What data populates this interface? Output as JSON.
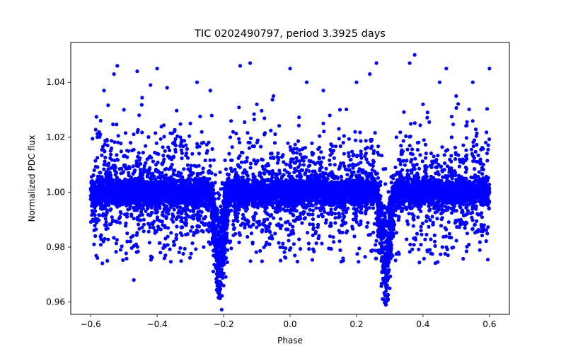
{
  "chart_data": {
    "type": "scatter",
    "title": "TIC 0202490797, period 3.3925 days",
    "xlabel": "Phase",
    "ylabel": "Normalized PDC flux",
    "xlim": [
      -0.66,
      0.66
    ],
    "ylim": [
      0.9555,
      1.0545
    ],
    "xticks": [
      -0.6,
      -0.4,
      -0.2,
      0.0,
      0.2,
      0.4,
      0.6
    ],
    "xtick_labels": [
      "−0.6",
      "−0.4",
      "−0.2",
      "0.0",
      "0.2",
      "0.4",
      "0.6"
    ],
    "yticks": [
      0.96,
      0.98,
      1.0,
      1.02,
      1.04
    ],
    "ytick_labels": [
      "0.96",
      "0.98",
      "1.00",
      "1.02",
      "1.04"
    ],
    "grid": false,
    "marker_color": "#0000ff",
    "series": [
      {
        "phase_range": [
          -0.6,
          0.6
        ],
        "baseline_flux": 1.0,
        "dense_band_halfwidth": 0.009,
        "scatter_range": [
          0.974,
          1.046
        ],
        "dips": [
          {
            "center_phase": -0.212,
            "depth": 0.035,
            "min_flux": 0.962
          },
          {
            "center_phase": 0.288,
            "depth": 0.035,
            "min_flux": 0.959
          }
        ],
        "points": [
          [
            -0.6,
            1.001
          ],
          [
            -0.59,
            0.981
          ],
          [
            -0.58,
            1.02
          ],
          [
            -0.57,
            1.026
          ],
          [
            -0.56,
            1.037
          ],
          [
            -0.55,
            0.975
          ],
          [
            -0.54,
            1.015
          ],
          [
            -0.53,
            1.043
          ],
          [
            -0.52,
            1.046
          ],
          [
            -0.51,
            0.979
          ],
          [
            -0.5,
            1.03
          ],
          [
            -0.49,
            0.985
          ],
          [
            -0.48,
            1.018
          ],
          [
            -0.47,
            0.968
          ],
          [
            -0.46,
            1.044
          ],
          [
            -0.45,
            1.006
          ],
          [
            -0.44,
            0.99
          ],
          [
            -0.42,
            1.039
          ],
          [
            -0.4,
            1.045
          ],
          [
            -0.39,
            0.978
          ],
          [
            -0.37,
            1.038
          ],
          [
            -0.35,
            0.982
          ],
          [
            -0.33,
            1.02
          ],
          [
            -0.3,
            1.025
          ],
          [
            -0.28,
            1.04
          ],
          [
            -0.26,
            0.98
          ],
          [
            -0.24,
            1.037
          ],
          [
            -0.22,
            0.975
          ],
          [
            -0.212,
            0.962
          ],
          [
            -0.2,
            0.966
          ],
          [
            -0.19,
            0.985
          ],
          [
            -0.18,
            1.02
          ],
          [
            -0.15,
            1.046
          ],
          [
            -0.12,
            1.047
          ],
          [
            -0.1,
            1.032
          ],
          [
            -0.05,
            1.035
          ],
          [
            0.0,
            1.045
          ],
          [
            0.05,
            1.04
          ],
          [
            0.1,
            1.037
          ],
          [
            0.15,
            1.03
          ],
          [
            0.2,
            1.04
          ],
          [
            0.24,
            1.043
          ],
          [
            0.26,
            1.047
          ],
          [
            0.27,
            0.985
          ],
          [
            0.288,
            0.959
          ],
          [
            0.3,
            0.965
          ],
          [
            0.32,
            1.02
          ],
          [
            0.36,
            1.047
          ],
          [
            0.375,
            1.05
          ],
          [
            0.4,
            1.032
          ],
          [
            0.45,
            1.04
          ],
          [
            0.47,
            1.045
          ],
          [
            0.5,
            1.035
          ],
          [
            0.55,
            1.04
          ],
          [
            0.6,
            1.045
          ]
        ]
      }
    ]
  }
}
